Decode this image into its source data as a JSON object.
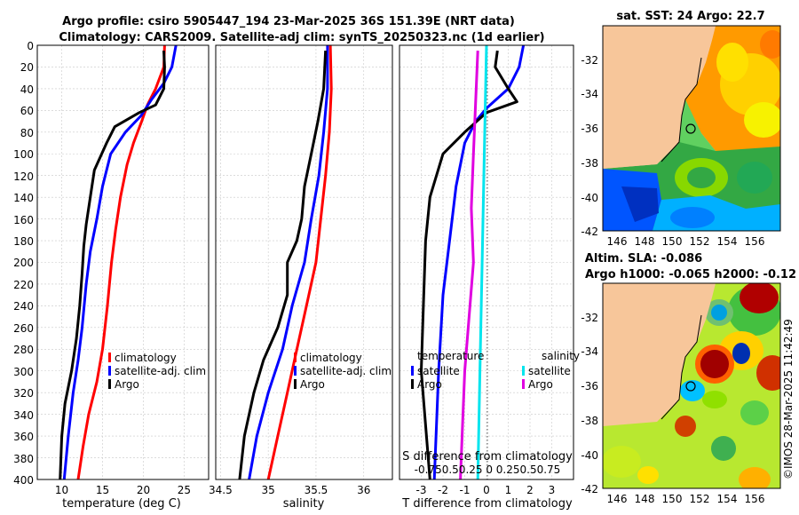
{
  "title": {
    "line1": "Argo profile: csiro 5905447_194 23-Mar-2025 36S 151.39E (NRT data)",
    "line2": "Climatology: CARS2009. Satellite-adj clim: synTS_20250323.nc (1d earlier)"
  },
  "colors": {
    "climatology": "#ff0000",
    "satellite": "#0000ff",
    "argo": "#000000",
    "sal_satellite": "#00e5ee",
    "sal_argo": "#e000e0",
    "land": "#f7c69a"
  },
  "depth_ticks": [
    "0",
    "20",
    "40",
    "60",
    "80",
    "100",
    "120",
    "140",
    "160",
    "180",
    "200",
    "220",
    "240",
    "260",
    "280",
    "300",
    "320",
    "340",
    "360",
    "380",
    "400"
  ],
  "chart_data": [
    {
      "type": "line",
      "name": "temperature",
      "xlabel": "temperature (deg C)",
      "ylabel": "depth",
      "xlim": [
        7,
        28
      ],
      "ylim": [
        400,
        0
      ],
      "xticks": [
        "10",
        "15",
        "20",
        "25"
      ],
      "xtick_values": [
        10,
        15,
        20,
        25
      ],
      "legend": [
        "climatology",
        "satellite-adj. clim",
        "Argo"
      ],
      "series": [
        {
          "name": "climatology",
          "color": "climatology",
          "points": [
            [
              22.6,
              0
            ],
            [
              22.5,
              20
            ],
            [
              21.5,
              40
            ],
            [
              20.5,
              55
            ],
            [
              19.8,
              70
            ],
            [
              18.8,
              90
            ],
            [
              18,
              110
            ],
            [
              17.2,
              140
            ],
            [
              16.6,
              170
            ],
            [
              16.1,
              200
            ],
            [
              15.6,
              240
            ],
            [
              15,
              280
            ],
            [
              14.3,
              310
            ],
            [
              13.3,
              340
            ],
            [
              12.6,
              370
            ],
            [
              12,
              400
            ]
          ]
        },
        {
          "name": "satellite-adj. clim",
          "color": "satellite",
          "points": [
            [
              24,
              0
            ],
            [
              23.5,
              20
            ],
            [
              22.5,
              35
            ],
            [
              21,
              50
            ],
            [
              19.7,
              65
            ],
            [
              17.8,
              80
            ],
            [
              16,
              100
            ],
            [
              15,
              130
            ],
            [
              14.3,
              160
            ],
            [
              13.5,
              190
            ],
            [
              13,
              220
            ],
            [
              12.5,
              260
            ],
            [
              12,
              290
            ],
            [
              11.4,
              320
            ],
            [
              10.8,
              360
            ],
            [
              10.3,
              400
            ]
          ]
        },
        {
          "name": "Argo",
          "color": "argo",
          "points": [
            [
              22.5,
              5
            ],
            [
              22.6,
              20
            ],
            [
              22.5,
              40
            ],
            [
              21.5,
              55
            ],
            [
              19.5,
              62
            ],
            [
              16.5,
              75
            ],
            [
              15.5,
              90
            ],
            [
              14,
              115
            ],
            [
              13.5,
              140
            ],
            [
              13,
              165
            ],
            [
              12.7,
              185
            ],
            [
              12.5,
              210
            ],
            [
              12.2,
              240
            ],
            [
              11.8,
              270
            ],
            [
              11.2,
              300
            ],
            [
              10.4,
              330
            ],
            [
              10,
              360
            ],
            [
              9.8,
              400
            ]
          ]
        }
      ]
    },
    {
      "type": "line",
      "name": "salinity",
      "xlabel": "salinity",
      "ylabel": "depth",
      "xlim": [
        34.45,
        36.3
      ],
      "ylim": [
        400,
        0
      ],
      "xticks": [
        "34.5",
        "35",
        "35.5",
        "36"
      ],
      "xtick_values": [
        34.5,
        35,
        35.5,
        36
      ],
      "legend": [
        "climatology",
        "satellite-adj. clim",
        "Argo"
      ],
      "series": [
        {
          "name": "climatology",
          "color": "climatology",
          "points": [
            [
              35.65,
              0
            ],
            [
              35.66,
              40
            ],
            [
              35.64,
              80
            ],
            [
              35.6,
              120
            ],
            [
              35.55,
              160
            ],
            [
              35.5,
              200
            ],
            [
              35.4,
              240
            ],
            [
              35.3,
              280
            ],
            [
              35.2,
              320
            ],
            [
              35.1,
              360
            ],
            [
              35,
              400
            ]
          ]
        },
        {
          "name": "satellite-adj. clim",
          "color": "satellite",
          "points": [
            [
              35.62,
              0
            ],
            [
              35.62,
              40
            ],
            [
              35.58,
              80
            ],
            [
              35.53,
              120
            ],
            [
              35.45,
              160
            ],
            [
              35.38,
              200
            ],
            [
              35.25,
              240
            ],
            [
              35.15,
              280
            ],
            [
              35,
              320
            ],
            [
              34.88,
              360
            ],
            [
              34.8,
              400
            ]
          ]
        },
        {
          "name": "Argo",
          "color": "argo",
          "points": [
            [
              35.6,
              5
            ],
            [
              35.58,
              40
            ],
            [
              35.52,
              70
            ],
            [
              35.45,
              100
            ],
            [
              35.38,
              130
            ],
            [
              35.35,
              160
            ],
            [
              35.3,
              180
            ],
            [
              35.2,
              200
            ],
            [
              35.2,
              230
            ],
            [
              35.1,
              260
            ],
            [
              34.95,
              290
            ],
            [
              34.85,
              320
            ],
            [
              34.75,
              360
            ],
            [
              34.7,
              400
            ]
          ]
        }
      ]
    },
    {
      "type": "line",
      "name": "difference from climatology",
      "xlabel": "T difference from climatology",
      "ylabel": "depth",
      "xlim": [
        -4,
        4
      ],
      "ylim": [
        400,
        0
      ],
      "xticks": [
        "-3",
        "-2",
        "-1",
        "0",
        "1",
        "2",
        "3"
      ],
      "xtick_values": [
        -3,
        -2,
        -1,
        0,
        1,
        2,
        3
      ],
      "top_label": "S difference from climatology",
      "top_ticks": "-0.750.50.25 0 0.250.50.75",
      "legend_temperature_title": "temperature",
      "legend_salinity_title": "salinity",
      "legend_temperature": [
        "satellite",
        "Argo"
      ],
      "legend_salinity": [
        "satellite",
        "Argo"
      ],
      "series": [
        {
          "name": "T satellite",
          "color": "satellite",
          "points": [
            [
              1.7,
              0
            ],
            [
              1.5,
              20
            ],
            [
              1,
              40
            ],
            [
              0,
              58
            ],
            [
              -0.5,
              70
            ],
            [
              -1,
              90
            ],
            [
              -1.4,
              130
            ],
            [
              -1.7,
              180
            ],
            [
              -2,
              230
            ],
            [
              -2.2,
              300
            ],
            [
              -2.4,
              400
            ]
          ]
        },
        {
          "name": "T Argo",
          "color": "argo",
          "points": [
            [
              0.5,
              5
            ],
            [
              0.4,
              20
            ],
            [
              1,
              40
            ],
            [
              1.4,
              52
            ],
            [
              0,
              62
            ],
            [
              -1,
              80
            ],
            [
              -2,
              100
            ],
            [
              -2.6,
              140
            ],
            [
              -2.8,
              180
            ],
            [
              -2.9,
              240
            ],
            [
              -3,
              300
            ],
            [
              -2.8,
              350
            ],
            [
              -2.6,
              400
            ]
          ]
        },
        {
          "name": "S satellite",
          "color": "sal_satellite",
          "points": [
            [
              0,
              0
            ],
            [
              -0.1,
              100
            ],
            [
              -0.2,
              200
            ],
            [
              -0.3,
              300
            ],
            [
              -0.4,
              400
            ]
          ]
        },
        {
          "name": "S Argo",
          "color": "sal_argo",
          "points": [
            [
              -0.4,
              5
            ],
            [
              -0.6,
              100
            ],
            [
              -0.7,
              150
            ],
            [
              -0.6,
              200
            ],
            [
              -0.8,
              250
            ],
            [
              -1,
              300
            ],
            [
              -1.1,
              350
            ],
            [
              -1.2,
              400
            ]
          ]
        }
      ]
    },
    {
      "type": "heatmap",
      "name": "sst-map",
      "title": "sat. SST: 24 Argo: 22.7",
      "xticks": [
        "146",
        "148",
        "150",
        "152",
        "154",
        "156"
      ],
      "yticks": [
        "-32",
        "-34",
        "-36",
        "-38",
        "-40",
        "-42"
      ]
    },
    {
      "type": "heatmap",
      "name": "sla-map",
      "title1": "Altim. SLA: -0.086",
      "title2": "Argo h1000: -0.065 h2000: -0.12",
      "xticks": [
        "146",
        "148",
        "150",
        "152",
        "154",
        "156"
      ],
      "yticks": [
        "-32",
        "-34",
        "-36",
        "-38",
        "-40",
        "-42"
      ]
    }
  ],
  "watermark": "©IMOS 28-Mar-2025 11:42:49"
}
